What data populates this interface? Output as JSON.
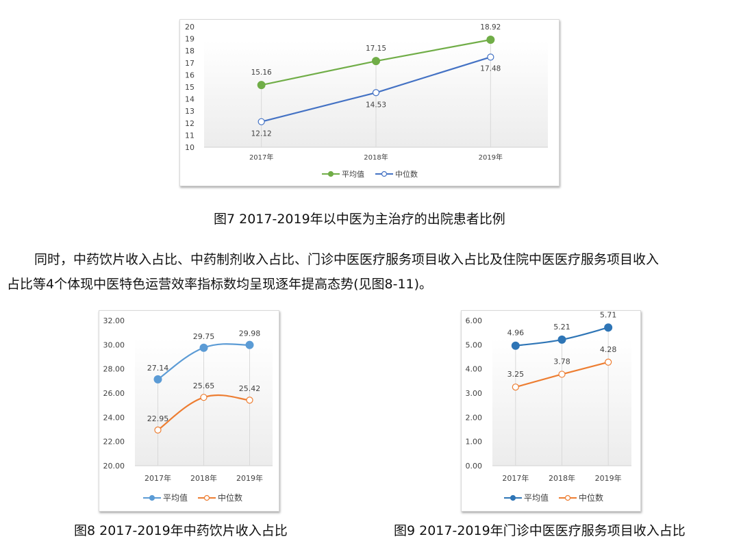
{
  "figure7": {
    "caption": "图7 2017-2019年以中医为主治疗的出院患者比例"
  },
  "paragraph": {
    "line1": "同时，中药饮片收入占比、中药制剂收入占比、门诊中医医疗服务项目收入占比及住院中医医疗服务项目收入",
    "line2": "占比等4个体现中医特色运营效率指标数均呈现逐年提高态势(见图8-11)。"
  },
  "figure8": {
    "caption": "图8 2017-2019年中药饮片收入占比"
  },
  "figure9": {
    "caption": "图9 2017-2019年门诊中医医疗服务项目收入占比"
  },
  "chart_data": [
    {
      "type": "line",
      "title": "图7 2017-2019年以中医为主治疗的出院患者比例",
      "categories": [
        "2017年",
        "2018年",
        "2019年"
      ],
      "series": [
        {
          "name": "平均值",
          "values": [
            15.16,
            17.15,
            18.92
          ],
          "color": "#70ad47",
          "marker": "filled"
        },
        {
          "name": "中位数",
          "values": [
            12.12,
            14.53,
            17.48
          ],
          "color": "#4472c4",
          "marker": "hollow"
        }
      ],
      "yticks": [
        "10",
        "11",
        "12",
        "13",
        "14",
        "15",
        "16",
        "17",
        "18",
        "19",
        "20"
      ],
      "ylim": [
        10,
        20
      ],
      "xlabel": "",
      "ylabel": "",
      "legend_position": "bottom",
      "grid": "vertical drop lines"
    },
    {
      "type": "line",
      "title": "图8 2017-2019年中药饮片收入占比",
      "categories": [
        "2017年",
        "2018年",
        "2019年"
      ],
      "series": [
        {
          "name": "平均值",
          "values": [
            27.14,
            29.75,
            29.98
          ],
          "color": "#5b9bd5",
          "marker": "filled"
        },
        {
          "name": "中位数",
          "values": [
            22.95,
            25.65,
            25.42
          ],
          "color": "#ed7d31",
          "marker": "hollow"
        }
      ],
      "yticks": [
        "20.00",
        "22.00",
        "24.00",
        "26.00",
        "28.00",
        "30.00",
        "32.00"
      ],
      "ylim": [
        20,
        32
      ],
      "xlabel": "",
      "ylabel": "",
      "legend_position": "bottom",
      "smooth": true
    },
    {
      "type": "line",
      "title": "图9 2017-2019年门诊中医医疗服务项目收入占比",
      "categories": [
        "2017年",
        "2018年",
        "2019年"
      ],
      "series": [
        {
          "name": "平均值",
          "values": [
            4.96,
            5.21,
            5.71
          ],
          "color": "#2e75b6",
          "marker": "filled"
        },
        {
          "name": "中位数",
          "values": [
            3.25,
            3.78,
            4.28
          ],
          "color": "#ed7d31",
          "marker": "hollow"
        }
      ],
      "yticks": [
        "0.00",
        "1.00",
        "2.00",
        "3.00",
        "4.00",
        "5.00",
        "6.00"
      ],
      "ylim": [
        0,
        6
      ],
      "xlabel": "",
      "ylabel": "",
      "legend_position": "bottom",
      "smooth": true
    }
  ]
}
